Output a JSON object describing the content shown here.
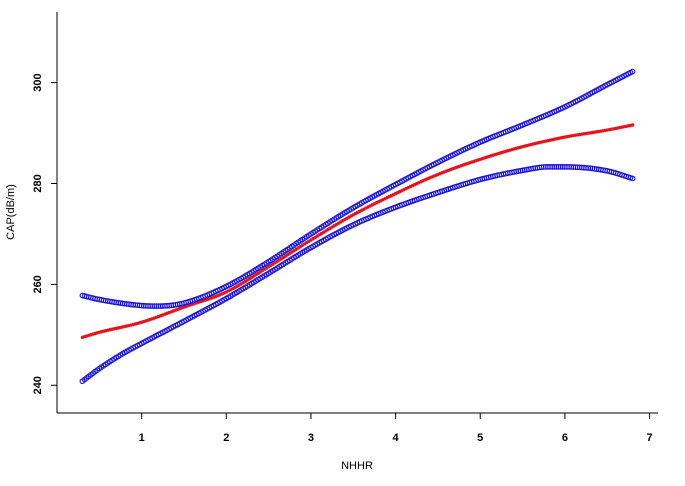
{
  "chart_data": {
    "type": "line",
    "title": "",
    "xlabel": "NHHR",
    "ylabel": "CAP(dB/m)",
    "xlim": [
      0.0,
      7.1
    ],
    "ylim": [
      234.5,
      314
    ],
    "xticks": [
      1,
      2,
      3,
      4,
      5,
      6,
      7
    ],
    "yticks": [
      240,
      260,
      280,
      300
    ],
    "grid": false,
    "legend": "none",
    "series": [
      {
        "color": "#e8141b",
        "style": "solid",
        "x": [
          0.3,
          0.5,
          1.0,
          1.5,
          2.0,
          2.5,
          3.0,
          3.5,
          4.0,
          4.5,
          5.0,
          5.5,
          6.0,
          6.5,
          6.8
        ],
        "y": [
          249.5,
          250.5,
          252.5,
          255.5,
          258.5,
          263.5,
          268.8,
          273.8,
          278.0,
          281.8,
          284.8,
          287.3,
          289.2,
          290.6,
          291.6
        ]
      },
      {
        "color": "#1a14d4",
        "style": "markers",
        "x": [
          0.3,
          0.5,
          1.0,
          1.2,
          1.5,
          2.0,
          2.5,
          3.0,
          3.5,
          4.0,
          4.5,
          5.0,
          5.5,
          6.0,
          6.5,
          6.8
        ],
        "y": [
          257.8,
          257.0,
          255.8,
          255.7,
          256.3,
          259.6,
          264.5,
          270.0,
          275.2,
          279.8,
          284.2,
          288.2,
          291.6,
          295.2,
          299.6,
          302.2
        ]
      },
      {
        "color": "#1a14d4",
        "style": "markers",
        "x": [
          0.3,
          0.5,
          0.8,
          1.0,
          1.5,
          2.0,
          2.5,
          3.0,
          3.5,
          4.0,
          4.5,
          5.0,
          5.5,
          5.8,
          6.0,
          6.5,
          6.8
        ],
        "y": [
          240.8,
          243.3,
          246.5,
          248.3,
          252.7,
          257.2,
          262.2,
          267.3,
          271.8,
          275.3,
          278.2,
          280.8,
          282.6,
          283.3,
          283.3,
          282.5,
          281.0
        ]
      }
    ]
  }
}
